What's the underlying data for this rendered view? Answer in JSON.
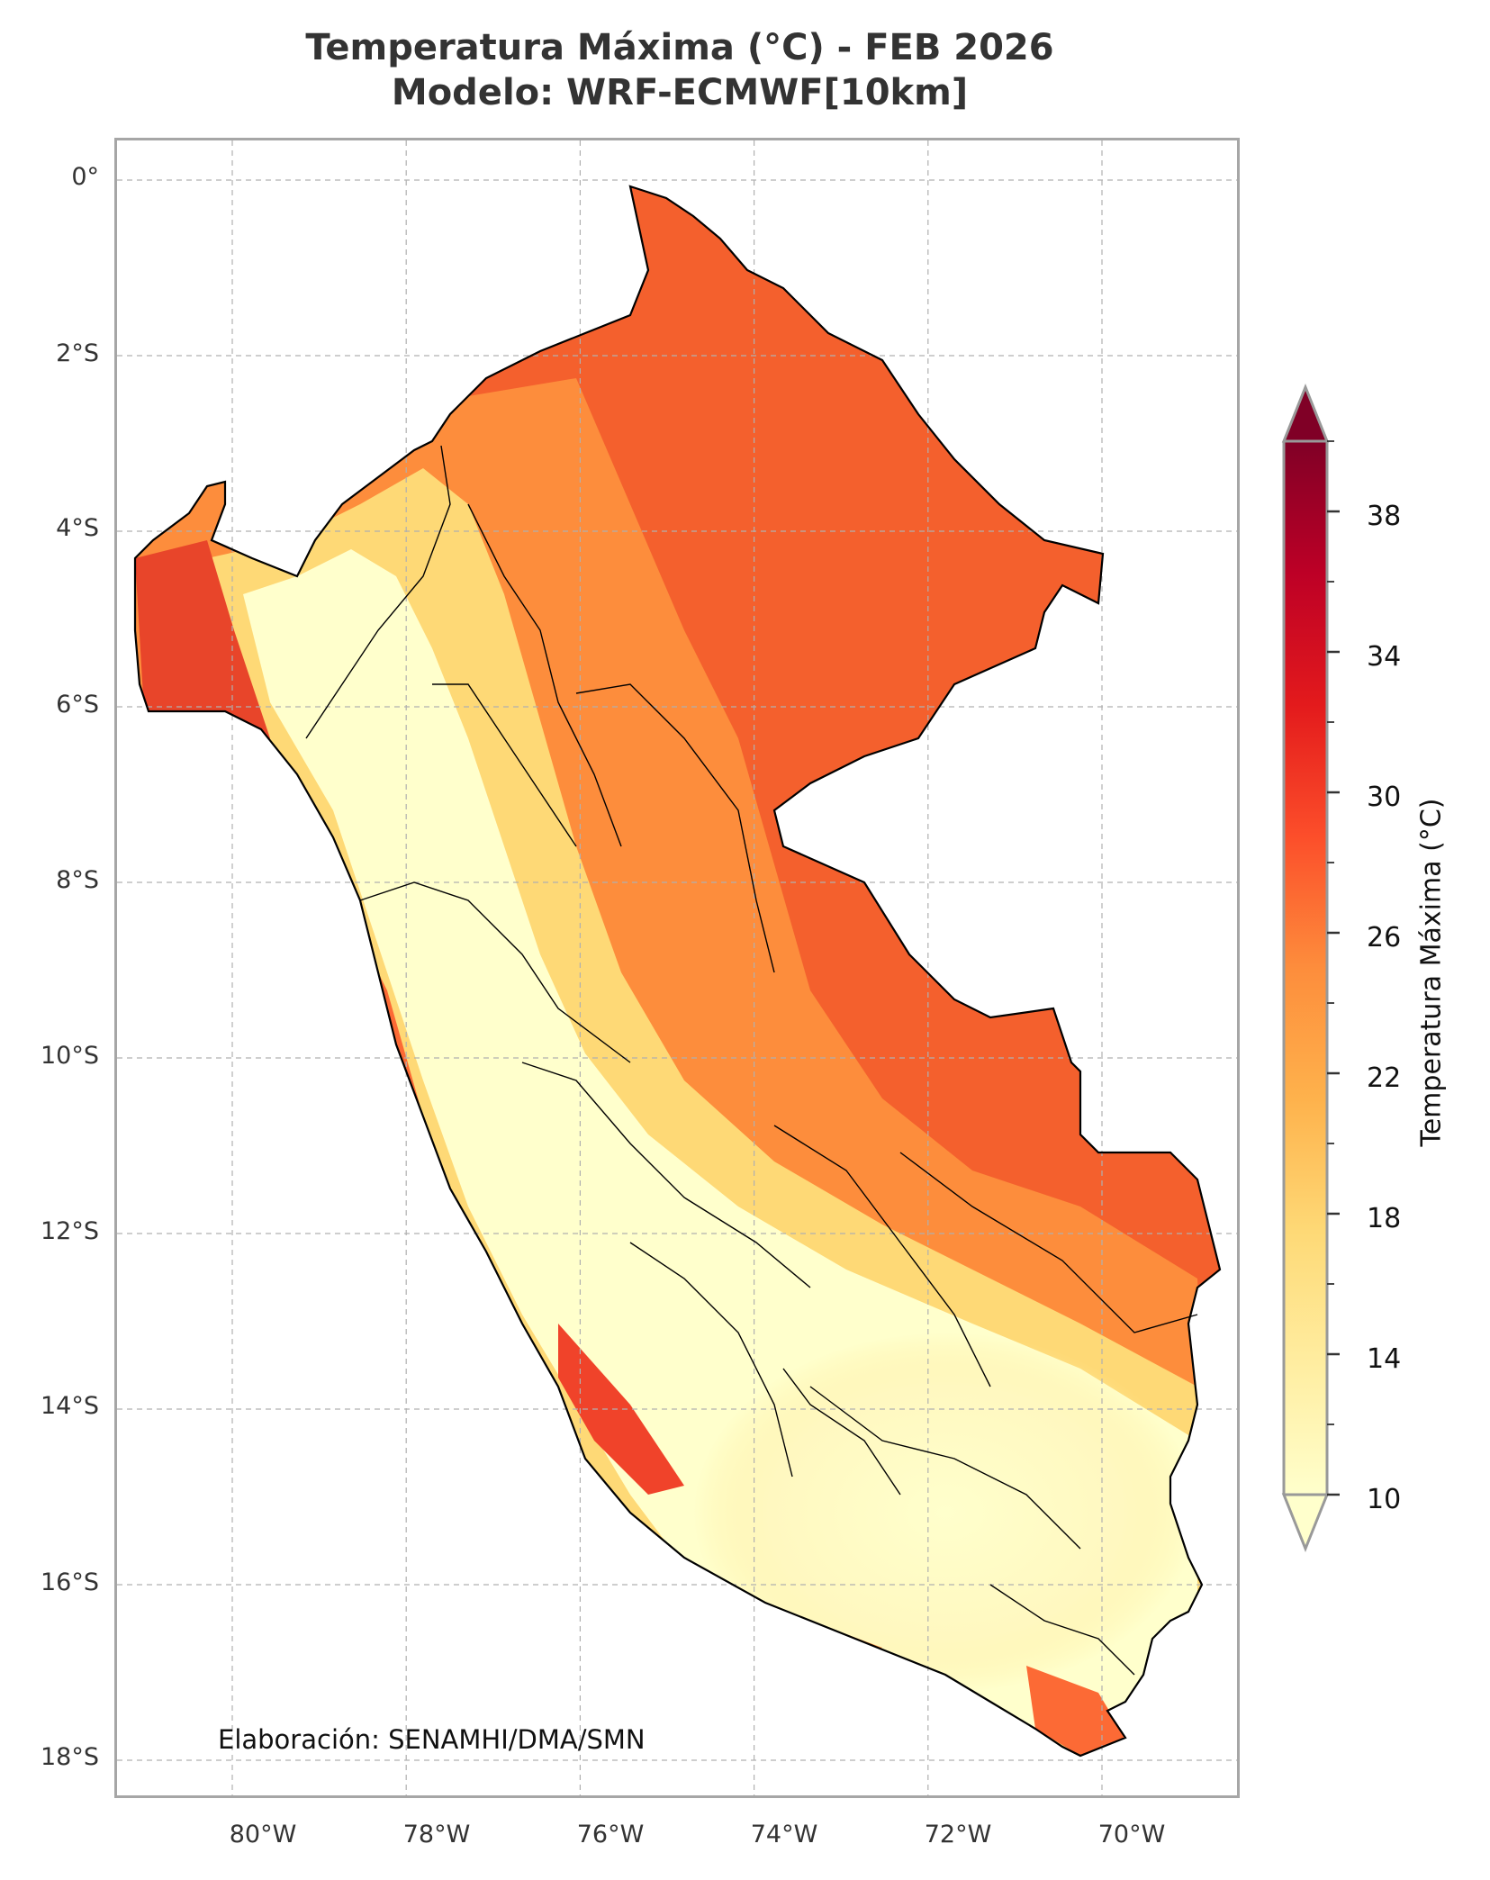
{
  "title": {
    "line1": "Temperatura Máxima (°C) - FEB 2026",
    "line2": "Modelo: WRF-ECMWF[10km]"
  },
  "credit": "Elaboración: SENAMHI/DMA/SMN",
  "axes": {
    "lat_ticks": [
      "0°",
      "2°S",
      "4°S",
      "6°S",
      "8°S",
      "10°S",
      "12°S",
      "14°S",
      "16°S",
      "18°S"
    ],
    "lon_ticks": [
      "80°W",
      "78°W",
      "76°W",
      "74°W",
      "72°W",
      "70°W"
    ],
    "lat_values": [
      0,
      -2,
      -4,
      -6,
      -8,
      -10,
      -12,
      -14,
      -16,
      -18
    ],
    "lon_values": [
      -80,
      -78,
      -76,
      -74,
      -72,
      -70
    ],
    "lon_range": [
      -81.5,
      -68.5
    ],
    "lat_range": [
      -18.5,
      0.5
    ],
    "grid": true
  },
  "colorbar": {
    "label": "Temperatura Máxima (°C)",
    "ticks": [
      "10",
      "14",
      "18",
      "22",
      "26",
      "30",
      "34",
      "38"
    ],
    "tick_values": [
      10,
      14,
      18,
      22,
      26,
      30,
      34,
      38
    ],
    "range": [
      10,
      40
    ],
    "extend": "both",
    "colormap": "YlOrRd",
    "colors": [
      "#ffffcc",
      "#ffeda0",
      "#fed976",
      "#feb24c",
      "#fd8d3c",
      "#fc4e2a",
      "#e31a1c",
      "#bd0026",
      "#800026"
    ]
  },
  "regions": [
    {
      "name": "amazon-lowland",
      "value": 30
    },
    {
      "name": "tumbes-piura-coast",
      "value": 31
    },
    {
      "name": "andean-highlands",
      "value": 11
    },
    {
      "name": "southern-altiplano",
      "value": 11
    },
    {
      "name": "ica-coast",
      "value": 30
    }
  ]
}
